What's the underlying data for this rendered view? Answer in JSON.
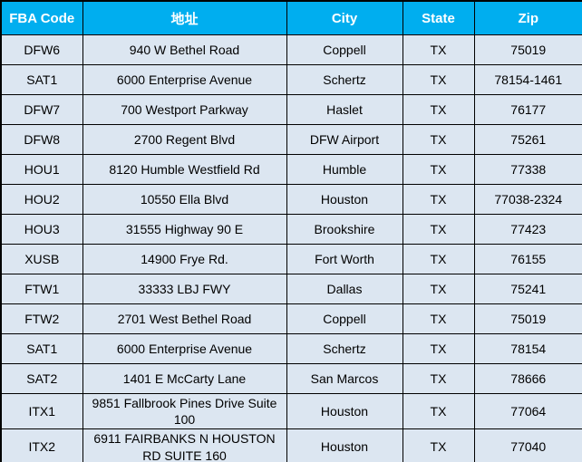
{
  "table": {
    "title": "FBA warehouse address table",
    "colors": {
      "header_bg": "#00AEEF",
      "header_text": "#FFFFFF",
      "row_bg": "#DCE6F1",
      "border": "#000000",
      "body_text": "#000000"
    },
    "columns": [
      {
        "key": "fba-code",
        "label": "FBA Code"
      },
      {
        "key": "address",
        "label": "地址"
      },
      {
        "key": "city",
        "label": "City"
      },
      {
        "key": "state",
        "label": "State"
      },
      {
        "key": "zip",
        "label": "Zip"
      }
    ],
    "rows": [
      [
        "DFW6",
        "940 W Bethel Road",
        "Coppell",
        "TX",
        "75019"
      ],
      [
        "SAT1",
        "6000 Enterprise Avenue",
        "Schertz",
        "TX",
        "78154-1461"
      ],
      [
        "DFW7",
        "700 Westport Parkway",
        "Haslet",
        "TX",
        "76177"
      ],
      [
        "DFW8",
        "2700 Regent Blvd",
        "DFW Airport",
        "TX",
        "75261"
      ],
      [
        "HOU1",
        "8120 Humble Westfield Rd",
        "Humble",
        "TX",
        "77338"
      ],
      [
        "HOU2",
        "10550 Ella Blvd",
        "Houston",
        "TX",
        "77038-2324"
      ],
      [
        "HOU3",
        "31555 Highway 90 E",
        "Brookshire",
        "TX",
        "77423"
      ],
      [
        "XUSB",
        "14900 Frye Rd.",
        "Fort Worth",
        "TX",
        "76155"
      ],
      [
        "FTW1",
        "33333 LBJ FWY",
        "Dallas",
        "TX",
        "75241"
      ],
      [
        "FTW2",
        "2701 West Bethel Road",
        "Coppell",
        "TX",
        "75019"
      ],
      [
        "SAT1",
        "6000 Enterprise Avenue",
        "Schertz",
        "TX",
        "78154"
      ],
      [
        "SAT2",
        "1401 E McCarty Lane",
        "San Marcos",
        "TX",
        "78666"
      ],
      [
        "ITX1",
        "9851 Fallbrook Pines Drive Suite 100",
        "Houston",
        "TX",
        "77064"
      ],
      [
        "ITX2",
        "6911 FAIRBANKS N HOUSTON RD SUITE 160",
        "Houston",
        "TX",
        "77040"
      ]
    ]
  }
}
